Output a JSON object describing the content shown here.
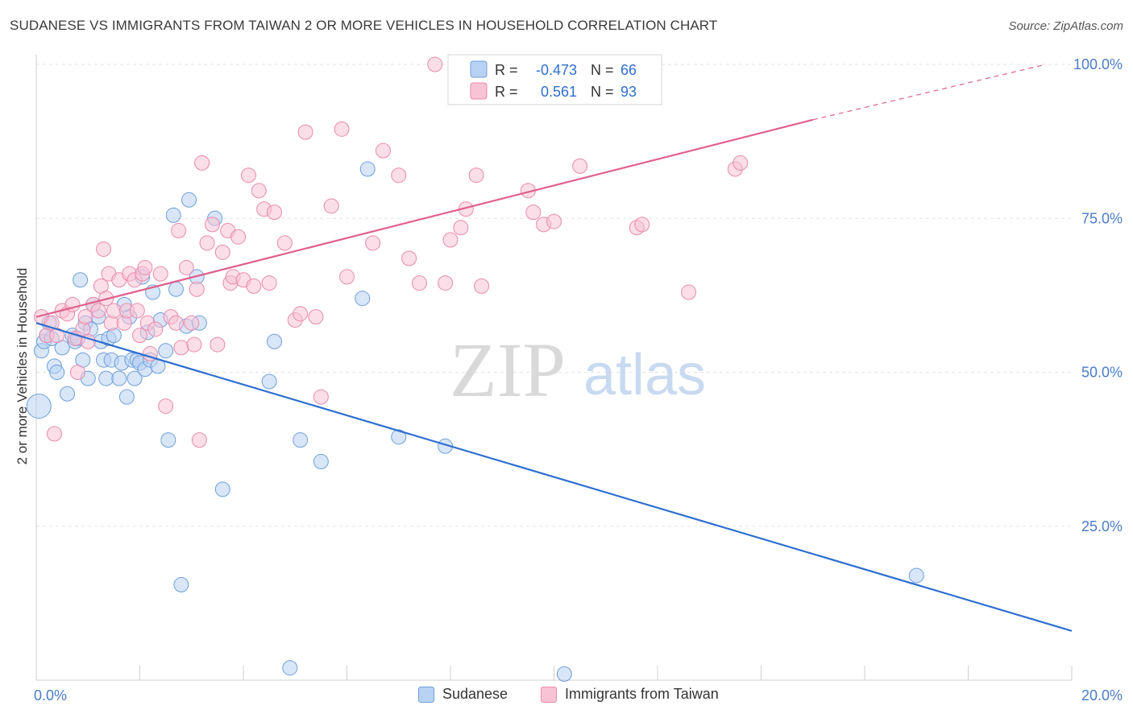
{
  "header": {
    "title": "SUDANESE VS IMMIGRANTS FROM TAIWAN 2 OR MORE VEHICLES IN HOUSEHOLD CORRELATION CHART",
    "source": "Source: ZipAtlas.com"
  },
  "watermark": {
    "zip": "ZIP",
    "atlas": "atlas"
  },
  "colors": {
    "blue_fill": "#b8d2f3",
    "blue_stroke": "#6f9fdc",
    "blue_line": "#2f6fd0",
    "pink_fill": "#f8c3d5",
    "pink_stroke": "#e98aab",
    "pink_line": "#e0618c",
    "tick_label": "#4a7cc9",
    "grid": "#e3e3e3"
  },
  "chart_data": {
    "type": "scatter",
    "xlabel": "",
    "ylabel": "2 or more Vehicles in Household",
    "xlim": [
      0,
      20
    ],
    "ylim": [
      0,
      100
    ],
    "x_tick_labels": [
      "0.0%",
      "20.0%"
    ],
    "y_ticks": [
      25,
      50,
      75,
      100
    ],
    "y_tick_labels": [
      "25.0%",
      "50.0%",
      "75.0%",
      "100.0%"
    ],
    "grid": true,
    "legend_position": "top-center",
    "legend": [
      {
        "r_label": "R =",
        "r_value": "-0.473",
        "n_label": "N =",
        "n_value": "66"
      },
      {
        "r_label": "R =",
        "r_value": "0.561",
        "n_label": "N =",
        "n_value": "93"
      }
    ],
    "series": [
      {
        "name": "Sudanese",
        "trend": {
          "x": [
            0,
            20
          ],
          "y": [
            58,
            8
          ]
        },
        "points": [
          [
            0.05,
            44.5
          ],
          [
            0.1,
            53.5
          ],
          [
            0.15,
            55
          ],
          [
            0.2,
            56
          ],
          [
            0.25,
            58
          ],
          [
            0.3,
            55.5
          ],
          [
            0.35,
            51
          ],
          [
            0.4,
            50
          ],
          [
            0.5,
            54
          ],
          [
            0.6,
            46.5
          ],
          [
            0.7,
            56
          ],
          [
            0.75,
            55
          ],
          [
            0.8,
            55.5
          ],
          [
            0.85,
            65
          ],
          [
            0.9,
            52
          ],
          [
            0.95,
            58
          ],
          [
            1.0,
            49
          ],
          [
            1.05,
            57
          ],
          [
            1.1,
            61
          ],
          [
            1.2,
            59
          ],
          [
            1.25,
            55
          ],
          [
            1.3,
            52
          ],
          [
            1.35,
            49
          ],
          [
            1.4,
            55.5
          ],
          [
            1.45,
            52
          ],
          [
            1.5,
            56
          ],
          [
            1.6,
            49
          ],
          [
            1.65,
            51.5
          ],
          [
            1.7,
            61
          ],
          [
            1.75,
            46
          ],
          [
            1.8,
            59
          ],
          [
            1.85,
            52
          ],
          [
            1.9,
            49
          ],
          [
            1.95,
            52
          ],
          [
            2.0,
            51.5
          ],
          [
            2.05,
            65.5
          ],
          [
            2.1,
            50.5
          ],
          [
            2.15,
            56.5
          ],
          [
            2.2,
            52
          ],
          [
            2.25,
            63
          ],
          [
            2.35,
            51
          ],
          [
            2.4,
            58.5
          ],
          [
            2.5,
            53.5
          ],
          [
            2.55,
            39
          ],
          [
            2.65,
            75.5
          ],
          [
            2.7,
            63.5
          ],
          [
            2.8,
            15.5
          ],
          [
            2.9,
            57.5
          ],
          [
            2.95,
            78
          ],
          [
            3.1,
            65.5
          ],
          [
            3.15,
            58
          ],
          [
            3.45,
            75
          ],
          [
            3.6,
            31
          ],
          [
            4.5,
            48.5
          ],
          [
            4.6,
            55
          ],
          [
            4.9,
            2
          ],
          [
            5.1,
            39
          ],
          [
            5.5,
            35.5
          ],
          [
            6.3,
            62
          ],
          [
            6.4,
            83
          ],
          [
            7.0,
            39.5
          ],
          [
            7.9,
            38
          ],
          [
            10.2,
            1
          ],
          [
            17.0,
            17
          ]
        ]
      },
      {
        "name": "Immigrants from Taiwan",
        "trend": {
          "x": [
            0,
            15
          ],
          "y": [
            59,
            91
          ]
        },
        "trend_dashed": {
          "x": [
            15,
            19.5
          ],
          "y": [
            91,
            100
          ]
        },
        "points": [
          [
            0.1,
            59
          ],
          [
            0.2,
            56
          ],
          [
            0.3,
            58
          ],
          [
            0.35,
            40
          ],
          [
            0.4,
            56
          ],
          [
            0.5,
            60
          ],
          [
            0.6,
            59.5
          ],
          [
            0.7,
            61
          ],
          [
            0.75,
            55.5
          ],
          [
            0.8,
            50
          ],
          [
            0.9,
            57
          ],
          [
            0.95,
            59
          ],
          [
            1.0,
            55
          ],
          [
            1.1,
            61
          ],
          [
            1.2,
            60
          ],
          [
            1.25,
            64
          ],
          [
            1.3,
            70
          ],
          [
            1.35,
            62
          ],
          [
            1.4,
            66
          ],
          [
            1.45,
            58
          ],
          [
            1.5,
            60
          ],
          [
            1.6,
            65
          ],
          [
            1.7,
            58
          ],
          [
            1.75,
            60
          ],
          [
            1.8,
            66
          ],
          [
            1.9,
            65
          ],
          [
            1.95,
            60
          ],
          [
            2.0,
            56
          ],
          [
            2.05,
            66
          ],
          [
            2.1,
            67
          ],
          [
            2.15,
            58
          ],
          [
            2.2,
            53
          ],
          [
            2.3,
            57
          ],
          [
            2.4,
            66
          ],
          [
            2.5,
            44.5
          ],
          [
            2.6,
            59
          ],
          [
            2.7,
            58
          ],
          [
            2.75,
            73
          ],
          [
            2.8,
            54
          ],
          [
            2.9,
            67
          ],
          [
            3.0,
            58
          ],
          [
            3.05,
            54.5
          ],
          [
            3.1,
            63.5
          ],
          [
            3.15,
            39
          ],
          [
            3.2,
            84
          ],
          [
            3.3,
            71
          ],
          [
            3.4,
            74
          ],
          [
            3.5,
            54.5
          ],
          [
            3.6,
            69.5
          ],
          [
            3.7,
            73
          ],
          [
            3.75,
            64.5
          ],
          [
            3.8,
            65.5
          ],
          [
            3.9,
            72
          ],
          [
            4.0,
            65
          ],
          [
            4.1,
            82
          ],
          [
            4.2,
            64
          ],
          [
            4.3,
            79.5
          ],
          [
            4.4,
            76.5
          ],
          [
            4.5,
            64.5
          ],
          [
            4.6,
            76
          ],
          [
            4.8,
            71
          ],
          [
            5.0,
            58.5
          ],
          [
            5.1,
            59.5
          ],
          [
            5.2,
            89
          ],
          [
            5.4,
            59
          ],
          [
            5.5,
            46
          ],
          [
            5.7,
            77
          ],
          [
            5.9,
            89.5
          ],
          [
            6.0,
            65.5
          ],
          [
            6.5,
            71
          ],
          [
            6.7,
            86
          ],
          [
            7.0,
            82
          ],
          [
            7.2,
            68.5
          ],
          [
            7.4,
            64.5
          ],
          [
            7.7,
            100
          ],
          [
            7.9,
            64.5
          ],
          [
            8.0,
            71.5
          ],
          [
            8.2,
            73.5
          ],
          [
            8.3,
            76.5
          ],
          [
            8.5,
            82
          ],
          [
            8.6,
            64
          ],
          [
            9.5,
            79.5
          ],
          [
            9.6,
            76
          ],
          [
            9.8,
            74
          ],
          [
            10.0,
            74.5
          ],
          [
            10.5,
            83.5
          ],
          [
            11.6,
            73.5
          ],
          [
            11.7,
            74
          ],
          [
            12.6,
            63
          ],
          [
            13.5,
            83
          ],
          [
            13.6,
            84
          ]
        ]
      }
    ]
  },
  "legend_bottom": [
    "Sudanese",
    "Immigrants from Taiwan"
  ]
}
